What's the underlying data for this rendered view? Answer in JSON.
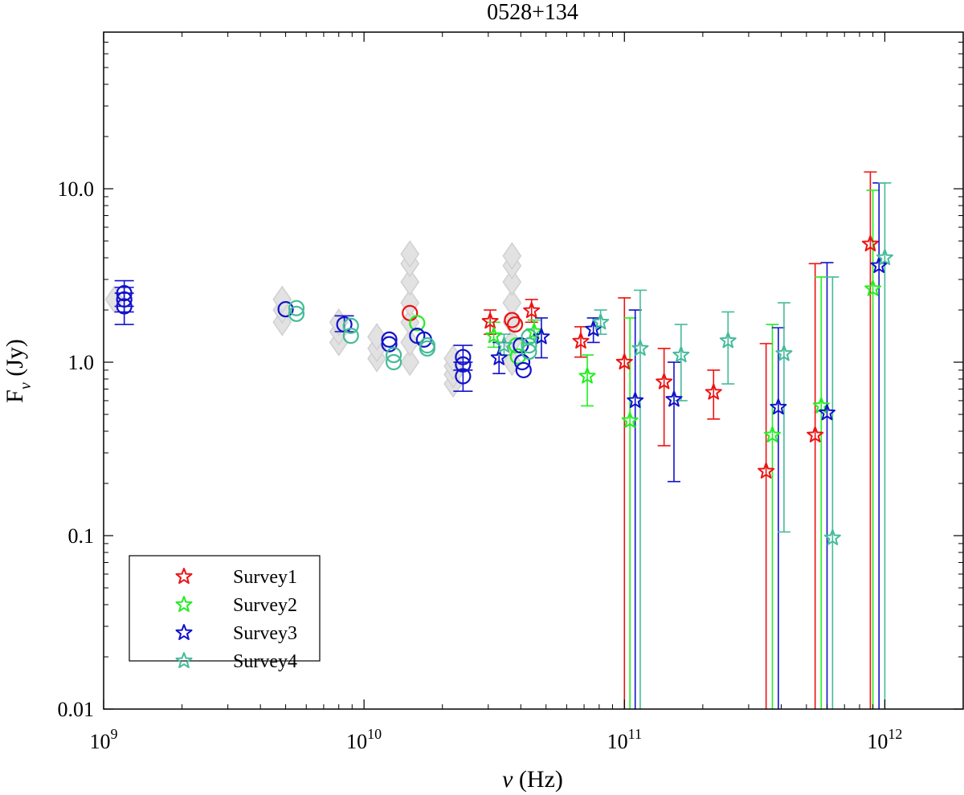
{
  "chart_data": {
    "type": "scatter",
    "title": "0528+134",
    "xlabel": "ν (Hz)",
    "ylabel": "F",
    "ylabel_sub": "ν",
    "ylabel_unit": " (Jy)",
    "xscale": "log",
    "yscale": "log",
    "xlim": [
      1000000000.0,
      2000000000000.0
    ],
    "ylim": [
      0.01,
      80
    ],
    "grid": false,
    "legend_position": "bottom-left",
    "x_ticks": [
      {
        "value": 1000000000.0,
        "base": "10",
        "exp": "9"
      },
      {
        "value": 10000000000.0,
        "base": "10",
        "exp": "10"
      },
      {
        "value": 100000000000.0,
        "base": "10",
        "exp": "11"
      },
      {
        "value": 1000000000000.0,
        "base": "10",
        "exp": "12"
      }
    ],
    "y_ticks": [
      {
        "value": 0.01,
        "label": "0.01"
      },
      {
        "value": 0.1,
        "label": "0.1"
      },
      {
        "value": 1,
        "label": "1.0"
      },
      {
        "value": 10,
        "label": "10.0"
      }
    ],
    "colors": {
      "survey1": "#ee1111",
      "survey2": "#22ee22",
      "survey3": "#1111cc",
      "survey4": "#44bb99",
      "archive": "#d9d9d9"
    },
    "archive_data": [
      {
        "x": 1100000000.0,
        "y": [
          2.3
        ]
      },
      {
        "x": 4850000000.0,
        "y": [
          1.7,
          2.0,
          2.3
        ]
      },
      {
        "x": 8000000000.0,
        "y": [
          1.3,
          1.5,
          1.7
        ]
      },
      {
        "x": 11200000000.0,
        "y": [
          1.05,
          1.2,
          1.4
        ]
      },
      {
        "x": 15000000000.0,
        "y": [
          1.0,
          1.3,
          1.7,
          2.2,
          2.9,
          3.7,
          4.2
        ]
      },
      {
        "x": 22000000000.0,
        "y": [
          0.75,
          0.85,
          0.95,
          1.05
        ]
      },
      {
        "x": 37000000000.0,
        "y": [
          1.0,
          1.3,
          1.7,
          2.2,
          2.9,
          3.6,
          4.1
        ]
      }
    ],
    "series": [
      {
        "name": "Survey1",
        "color_key": "survey1",
        "circles": [
          {
            "x": 15000000000.0,
            "y": 1.92
          },
          {
            "x": 37000000000.0,
            "y": 1.75
          },
          {
            "x": 38000000000.0,
            "y": 1.65
          }
        ],
        "stars": [
          {
            "x": 30500000000.0,
            "y": 1.72,
            "lo": 1.45,
            "hi": 2.0
          },
          {
            "x": 44000000000.0,
            "y": 1.98,
            "lo": 1.7,
            "hi": 2.3
          },
          {
            "x": 68000000000.0,
            "y": 1.32,
            "lo": 1.07,
            "hi": 1.6
          },
          {
            "x": 100000000000.0,
            "y": 1.0,
            "lo": 0.01,
            "hi": 2.35
          },
          {
            "x": 142000000000.0,
            "y": 0.77,
            "lo": 0.33,
            "hi": 1.2
          },
          {
            "x": 220000000000.0,
            "y": 0.67,
            "lo": 0.47,
            "hi": 0.9
          },
          {
            "x": 350000000000.0,
            "y": 0.235,
            "lo": 0.01,
            "hi": 1.28
          },
          {
            "x": 540000000000.0,
            "y": 0.38,
            "lo": 0.01,
            "hi": 3.7
          },
          {
            "x": 880000000000.0,
            "y": 4.8,
            "lo": 0.01,
            "hi": 12.5
          }
        ]
      },
      {
        "name": "Survey2",
        "color_key": "survey2",
        "circles": [
          {
            "x": 16000000000.0,
            "y": 1.68
          },
          {
            "x": 38500000000.0,
            "y": 1.25
          },
          {
            "x": 39000000000.0,
            "y": 1.08
          }
        ],
        "stars": [
          {
            "x": 31500000000.0,
            "y": 1.42,
            "lo": 1.22,
            "hi": 1.7
          },
          {
            "x": 45000000000.0,
            "y": 1.5,
            "lo": 1.3,
            "hi": 1.75
          },
          {
            "x": 72000000000.0,
            "y": 0.83,
            "lo": 0.56,
            "hi": 1.1
          },
          {
            "x": 105000000000.0,
            "y": 0.46,
            "lo": 0.01,
            "hi": 1.8
          },
          {
            "x": 370000000000.0,
            "y": 0.38,
            "lo": 0.01,
            "hi": 1.65
          },
          {
            "x": 570000000000.0,
            "y": 0.56,
            "lo": 0.01,
            "hi": 3.1
          },
          {
            "x": 900000000000.0,
            "y": 2.65,
            "lo": 0.01,
            "hi": 9.8
          }
        ]
      },
      {
        "name": "Survey3",
        "color_key": "survey3",
        "circles": [
          {
            "x": 1200000000.0,
            "y": 2.5,
            "lo": 2.1,
            "hi": 2.95
          },
          {
            "x": 1200000000.0,
            "y": 2.3,
            "lo": 1.95,
            "hi": 2.7
          },
          {
            "x": 1200000000.0,
            "y": 2.1,
            "lo": 1.65,
            "hi": 2.5
          },
          {
            "x": 5000000000.0,
            "y": 2.02
          },
          {
            "x": 8400000000.0,
            "y": 1.65,
            "lo": 1.5,
            "hi": 1.85
          },
          {
            "x": 12500000000.0,
            "y": 1.35
          },
          {
            "x": 12500000000.0,
            "y": 1.27
          },
          {
            "x": 16000000000.0,
            "y": 1.42
          },
          {
            "x": 17000000000.0,
            "y": 1.35
          },
          {
            "x": 24000000000.0,
            "y": 1.07,
            "lo": 0.9,
            "hi": 1.25
          },
          {
            "x": 24000000000.0,
            "y": 0.97
          },
          {
            "x": 24000000000.0,
            "y": 0.83,
            "lo": 0.68,
            "hi": 1.0
          },
          {
            "x": 40000000000.0,
            "y": 1.25
          },
          {
            "x": 40500000000.0,
            "y": 1.0
          },
          {
            "x": 41000000000.0,
            "y": 0.9
          }
        ],
        "stars": [
          {
            "x": 33000000000.0,
            "y": 1.06,
            "lo": 0.86,
            "hi": 1.3
          },
          {
            "x": 48000000000.0,
            "y": 1.4,
            "lo": 1.06,
            "hi": 1.8
          },
          {
            "x": 76000000000.0,
            "y": 1.55,
            "lo": 1.3,
            "hi": 1.8
          },
          {
            "x": 110000000000.0,
            "y": 0.6,
            "lo": 0.01,
            "hi": 2.0
          },
          {
            "x": 155000000000.0,
            "y": 0.61,
            "lo": 0.205,
            "hi": 1.0
          },
          {
            "x": 390000000000.0,
            "y": 0.55,
            "lo": 0.01,
            "hi": 1.58
          },
          {
            "x": 600000000000.0,
            "y": 0.51,
            "lo": 0.01,
            "hi": 3.75
          },
          {
            "x": 950000000000.0,
            "y": 3.6,
            "lo": 0.01,
            "hi": 10.8
          }
        ]
      },
      {
        "name": "Survey4",
        "color_key": "survey4",
        "circles": [
          {
            "x": 5500000000.0,
            "y": 2.05
          },
          {
            "x": 5500000000.0,
            "y": 1.9
          },
          {
            "x": 8900000000.0,
            "y": 1.62
          },
          {
            "x": 8900000000.0,
            "y": 1.42
          },
          {
            "x": 13000000000.0,
            "y": 1.1
          },
          {
            "x": 13000000000.0,
            "y": 1.0
          },
          {
            "x": 17500000000.0,
            "y": 1.25
          },
          {
            "x": 17500000000.0,
            "y": 1.2
          },
          {
            "x": 43000000000.0,
            "y": 1.4
          },
          {
            "x": 43000000000.0,
            "y": 1.25
          },
          {
            "x": 43000000000.0,
            "y": 1.15
          }
        ],
        "stars": [
          {
            "x": 34500000000.0,
            "y": 1.25,
            "lo": 1.1,
            "hi": 1.45
          },
          {
            "x": 81000000000.0,
            "y": 1.7,
            "lo": 1.45,
            "hi": 2.0
          },
          {
            "x": 115000000000.0,
            "y": 1.2,
            "lo": 0.01,
            "hi": 2.6
          },
          {
            "x": 165000000000.0,
            "y": 1.1,
            "lo": 0.6,
            "hi": 1.65
          },
          {
            "x": 250000000000.0,
            "y": 1.33,
            "lo": 0.75,
            "hi": 1.95
          },
          {
            "x": 410000000000.0,
            "y": 1.12,
            "lo": 0.105,
            "hi": 2.2
          },
          {
            "x": 630000000000.0,
            "y": 0.097,
            "lo": 0.01,
            "hi": 3.1
          },
          {
            "x": 1000000000000.0,
            "y": 4.0,
            "lo": 0.01,
            "hi": 10.8
          }
        ]
      }
    ]
  }
}
